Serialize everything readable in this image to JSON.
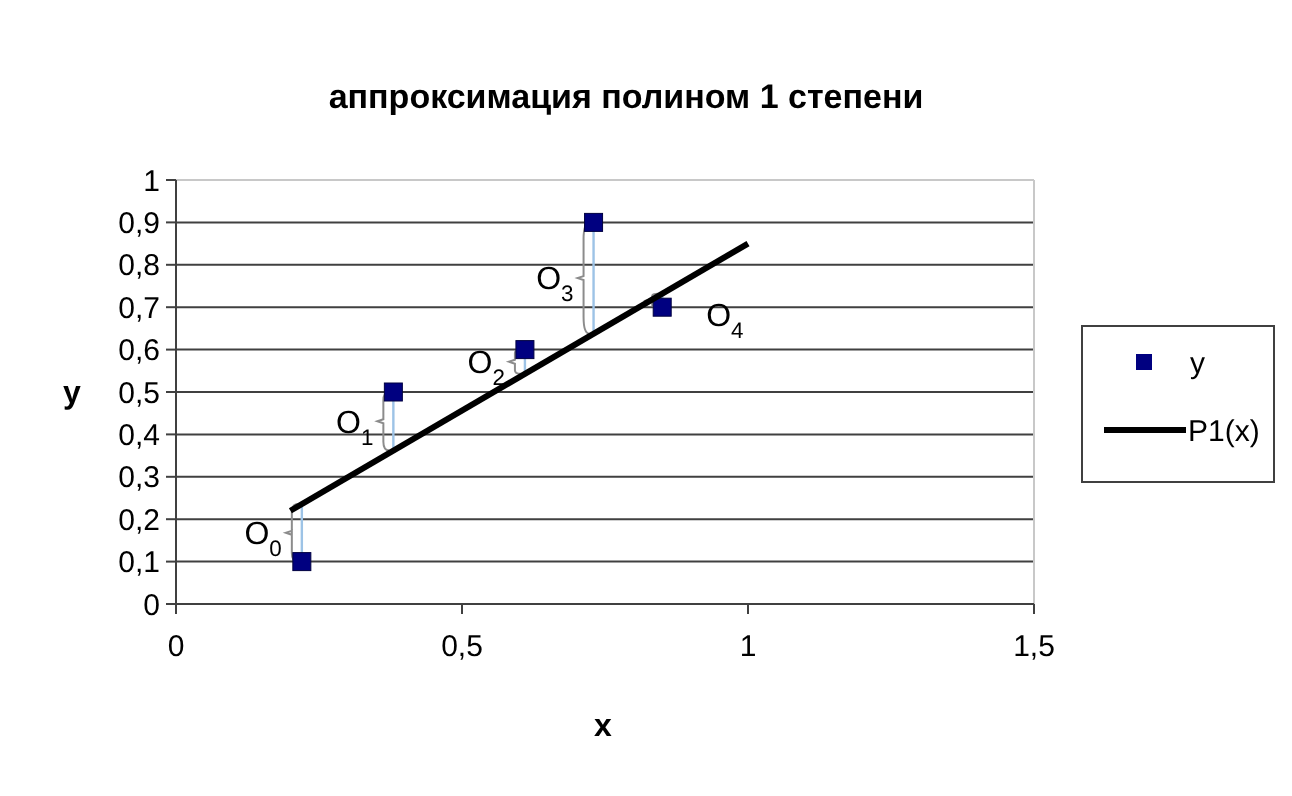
{
  "chart_data": {
    "type": "scatter",
    "title": "аппроксимация  полином 1 степени",
    "xlabel": "x",
    "ylabel": "y",
    "xlim": [
      0,
      1.5
    ],
    "xticks": [
      0,
      {
        "value": 0.5,
        "label": "0,5"
      },
      1,
      {
        "value": 1.5,
        "label": "1,5"
      }
    ],
    "ylim": [
      0,
      1
    ],
    "yticks": [
      0,
      {
        "value": 0.1,
        "label": "0,1"
      },
      {
        "value": 0.2,
        "label": "0,2"
      },
      {
        "value": 0.3,
        "label": "0,3"
      },
      {
        "value": 0.4,
        "label": "0,4"
      },
      {
        "value": 0.5,
        "label": "0,5"
      },
      {
        "value": 0.6,
        "label": "0,6"
      },
      {
        "value": 0.7,
        "label": "0,7"
      },
      {
        "value": 0.8,
        "label": "0,8"
      },
      {
        "value": 0.9,
        "label": "0,9"
      },
      1
    ],
    "grid": "y",
    "legend": "right",
    "series": [
      {
        "name": "y",
        "marker": "square",
        "color": "#000080",
        "x": [
          0.22,
          0.38,
          0.61,
          0.73,
          0.85
        ],
        "values": [
          0.1,
          0.5,
          0.6,
          0.9,
          0.7
        ]
      },
      {
        "name": "P1(x)",
        "type": "line",
        "marker": "none",
        "color": "#000000",
        "x": [
          0.2,
          1
        ],
        "values": [
          0.22,
          0.85
        ]
      }
    ],
    "annotations": [
      {
        "text": "O$_{0}$",
        "x": 0.22,
        "y": 0.1
      },
      {
        "text": "O$_{1}$",
        "x": 0.38,
        "y": 0.5
      },
      {
        "text": "O$_{2}$",
        "x": 0.61,
        "y": 0.6
      },
      {
        "text": "O$_{3}$",
        "x": 0.73,
        "y": 0.9
      },
      {
        "text": "O$_{4}$",
        "x": 0.85,
        "y": 0.7
      }
    ]
  }
}
